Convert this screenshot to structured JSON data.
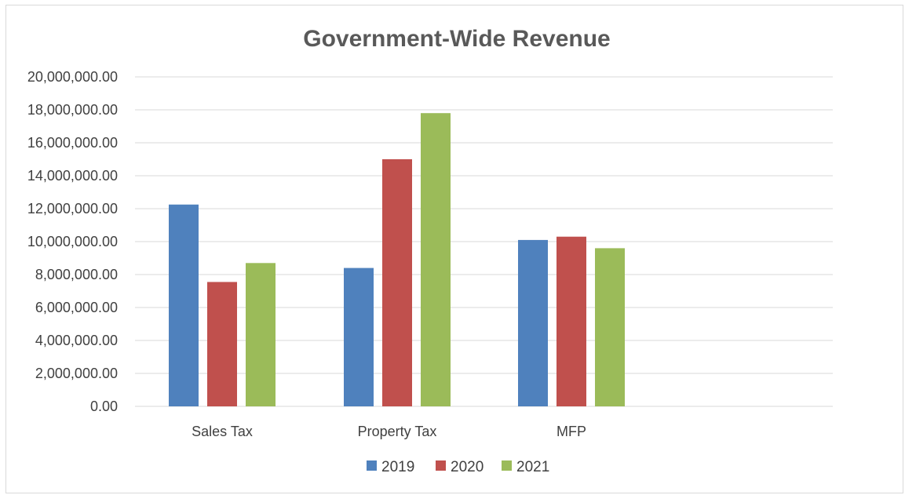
{
  "chart_data": {
    "type": "bar",
    "title": "Government-Wide Revenue",
    "xlabel": "",
    "ylabel": "",
    "categories": [
      "Sales Tax",
      "Property Tax",
      "MFP"
    ],
    "series": [
      {
        "name": "2019",
        "color": "#4f81bd",
        "values": [
          12250000,
          8400000,
          10100000
        ]
      },
      {
        "name": "2020",
        "color": "#c0504d",
        "values": [
          7550000,
          15000000,
          10300000
        ]
      },
      {
        "name": "2021",
        "color": "#9bbb59",
        "values": [
          8700000,
          17800000,
          9600000
        ]
      }
    ],
    "ylim": [
      0,
      20000000
    ],
    "yticks": [
      0,
      2000000,
      4000000,
      6000000,
      8000000,
      10000000,
      12000000,
      14000000,
      16000000,
      18000000,
      20000000
    ],
    "ytick_labels": [
      "0.00",
      "2,000,000.00",
      "4,000,000.00",
      "6,000,000.00",
      "8,000,000.00",
      "10,000,000.00",
      "12,000,000.00",
      "14,000,000.00",
      "16,000,000.00",
      "18,000,000.00",
      "20,000,000.00"
    ],
    "grid": true,
    "legend_position": "bottom",
    "gridline_color": "#d9d9d9"
  }
}
